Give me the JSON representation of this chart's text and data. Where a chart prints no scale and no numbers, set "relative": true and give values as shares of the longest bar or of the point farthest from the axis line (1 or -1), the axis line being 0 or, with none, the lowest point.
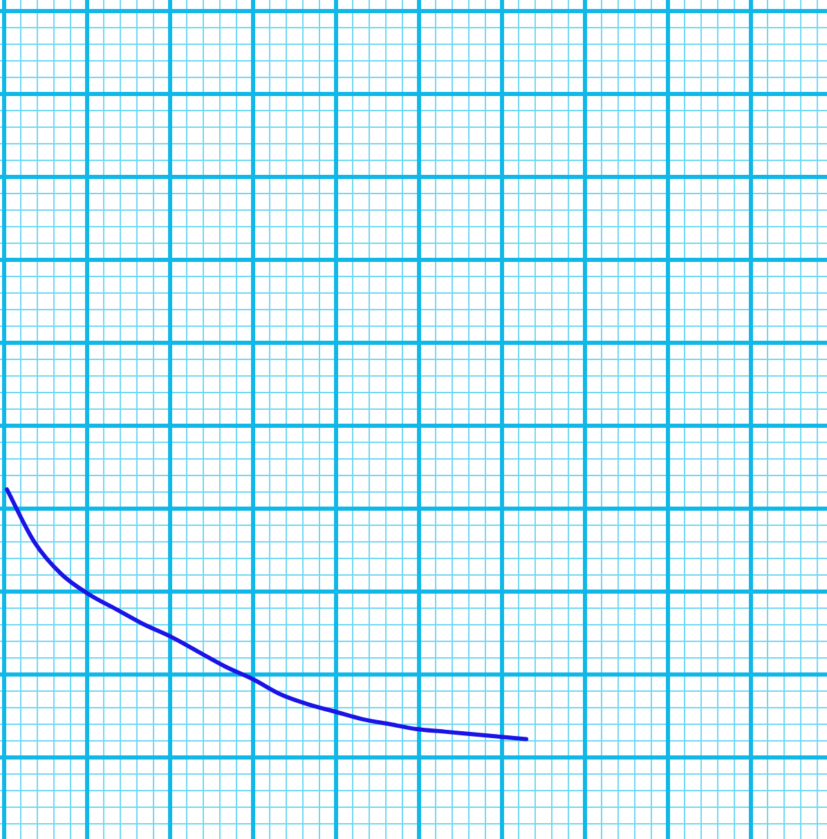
{
  "chart_data": {
    "type": "line",
    "relative": true,
    "grid": true,
    "categories": [
      null,
      null,
      null,
      null,
      null,
      null,
      null,
      null,
      null,
      null,
      null,
      null,
      null,
      null,
      null,
      null,
      null,
      null,
      null,
      null,
      null,
      null,
      null,
      null,
      null,
      null,
      null,
      null,
      null,
      null,
      null
    ],
    "series": [
      {
        "color": "#1a14e6",
        "values": [
          1,
          0.79,
          0.66,
          0.58,
          0.52,
          0.46,
          0.41,
          0.35,
          0.29,
          0.24,
          0.18,
          0.14,
          0.11,
          0.08,
          0.06,
          0.04,
          0.03,
          0.02,
          0.01,
          0,
          null,
          null,
          null,
          null,
          null,
          null,
          null,
          null,
          null,
          null,
          null
        ]
      }
    ]
  }
}
